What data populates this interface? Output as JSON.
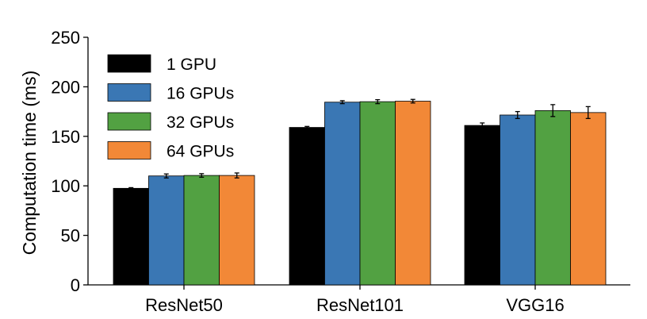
{
  "chart_data": {
    "type": "bar",
    "title": "",
    "xlabel": "",
    "ylabel": "Computation time (ms)",
    "ylim": [
      0,
      250
    ],
    "yticks": [
      0,
      50,
      100,
      150,
      200,
      250
    ],
    "categories": [
      "ResNet50",
      "ResNet101",
      "VGG16"
    ],
    "series": [
      {
        "name": "1 GPU",
        "color": "#000000",
        "values": [
          97.5,
          159,
          161
        ],
        "errors": [
          0.7,
          1,
          2.5
        ]
      },
      {
        "name": "16 GPUs",
        "color": "#3a77b4",
        "values": [
          110,
          184.5,
          171.5
        ],
        "errors": [
          2,
          1.5,
          3.5
        ]
      },
      {
        "name": "32 GPUs",
        "color": "#52a142",
        "values": [
          110.5,
          185,
          176
        ],
        "errors": [
          1.8,
          2,
          6
        ]
      },
      {
        "name": "64 GPUs",
        "color": "#f28837",
        "values": [
          110.5,
          185.5,
          174
        ],
        "errors": [
          2.5,
          1.8,
          6
        ]
      }
    ],
    "legend": "top-left",
    "grid": false
  }
}
